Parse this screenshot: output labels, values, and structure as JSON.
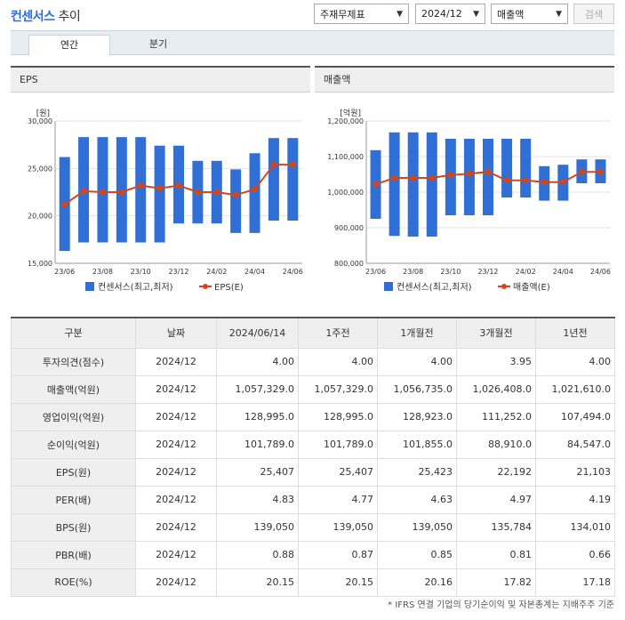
{
  "header": {
    "title_highlight": "컨센서스",
    "title_rest": "추이",
    "select_category": "주재무제표",
    "select_period": "2024/12",
    "select_metric": "매출액",
    "search_label": "검색"
  },
  "tabs": [
    {
      "label": "연간"
    },
    {
      "label": "분기"
    }
  ],
  "charts": {
    "eps": {
      "title": "EPS",
      "unit": "[원]",
      "legend_bar": "컨센서스(최고,최저)",
      "legend_line": "EPS(E)"
    },
    "sales": {
      "title": "매출액",
      "unit": "[억원]",
      "legend_bar": "컨센서스(최고,최저)",
      "legend_line": "매출액(E)"
    }
  },
  "chart_data": [
    {
      "type": "bar",
      "title": "EPS",
      "ylabel": "[원]",
      "ylim": [
        15000,
        30000
      ],
      "yticks": [
        "30,000",
        "25,000",
        "20,000",
        "15,000"
      ],
      "ytick_values": [
        30000,
        25000,
        20000,
        15000
      ],
      "xtick_labels": [
        "23/06",
        "23/08",
        "23/10",
        "23/12",
        "24/02",
        "24/04",
        "24/06"
      ],
      "bar_color": "#2f6fd6",
      "line_color": "#d2461e",
      "series": [
        {
          "name": "컨센서스(최고,최저)",
          "high": [
            26200,
            28300,
            28300,
            28300,
            28300,
            27400,
            27400,
            25800,
            25800,
            24900,
            26600,
            28200,
            28200
          ],
          "low": [
            16300,
            17200,
            17200,
            17200,
            17200,
            17200,
            19200,
            19200,
            19200,
            18200,
            18200,
            19500,
            19500
          ]
        },
        {
          "name": "EPS(E)",
          "values": [
            21200,
            22600,
            22500,
            22500,
            23200,
            22900,
            23200,
            22500,
            22500,
            22200,
            22800,
            25400,
            25400
          ]
        }
      ]
    },
    {
      "type": "bar",
      "title": "매출액",
      "ylabel": "[억원]",
      "ylim": [
        800000,
        1200000
      ],
      "yticks": [
        "1,200,000",
        "1,100,000",
        "1,000,000",
        "900,000",
        "800,000"
      ],
      "ytick_values": [
        1200000,
        1100000,
        1000000,
        900000,
        800000
      ],
      "xtick_labels": [
        "23/06",
        "23/08",
        "23/10",
        "23/12",
        "24/02",
        "24/04",
        "24/06"
      ],
      "bar_color": "#2f6fd6",
      "line_color": "#d2461e",
      "series": [
        {
          "name": "컨센서스(최고,최저)",
          "high": [
            1118000,
            1168000,
            1168000,
            1168000,
            1150000,
            1150000,
            1150000,
            1150000,
            1150000,
            1073000,
            1077000,
            1092000,
            1092000
          ],
          "low": [
            925000,
            877000,
            875000,
            875000,
            935000,
            935000,
            935000,
            985000,
            985000,
            976000,
            976000,
            1025000,
            1025000
          ]
        },
        {
          "name": "매출액(E)",
          "values": [
            1022000,
            1040000,
            1040000,
            1040000,
            1048000,
            1052000,
            1057000,
            1033000,
            1033000,
            1028000,
            1028000,
            1057000,
            1057000
          ]
        }
      ]
    }
  ],
  "table": {
    "headers": [
      "구분",
      "날짜",
      "2024/06/14",
      "1주전",
      "1개월전",
      "3개월전",
      "1년전"
    ],
    "rows": [
      [
        "투자의견(점수)",
        "2024/12",
        "4.00",
        "4.00",
        "4.00",
        "3.95",
        "4.00"
      ],
      [
        "매출액(억원)",
        "2024/12",
        "1,057,329.0",
        "1,057,329.0",
        "1,056,735.0",
        "1,026,408.0",
        "1,021,610.0"
      ],
      [
        "영업이익(억원)",
        "2024/12",
        "128,995.0",
        "128,995.0",
        "128,923.0",
        "111,252.0",
        "107,494.0"
      ],
      [
        "순이익(억원)",
        "2024/12",
        "101,789.0",
        "101,789.0",
        "101,855.0",
        "88,910.0",
        "84,547.0"
      ],
      [
        "EPS(원)",
        "2024/12",
        "25,407",
        "25,407",
        "25,423",
        "22,192",
        "21,103"
      ],
      [
        "PER(배)",
        "2024/12",
        "4.83",
        "4.77",
        "4.63",
        "4.97",
        "4.19"
      ],
      [
        "BPS(원)",
        "2024/12",
        "139,050",
        "139,050",
        "139,050",
        "135,784",
        "134,010"
      ],
      [
        "PBR(배)",
        "2024/12",
        "0.88",
        "0.87",
        "0.85",
        "0.81",
        "0.66"
      ],
      [
        "ROE(%)",
        "2024/12",
        "20.15",
        "20.15",
        "20.16",
        "17.82",
        "17.18"
      ]
    ]
  },
  "footnote": "* IFRS 연결 기업의 당기순이익 및 자본총계는 지배주주 기준"
}
